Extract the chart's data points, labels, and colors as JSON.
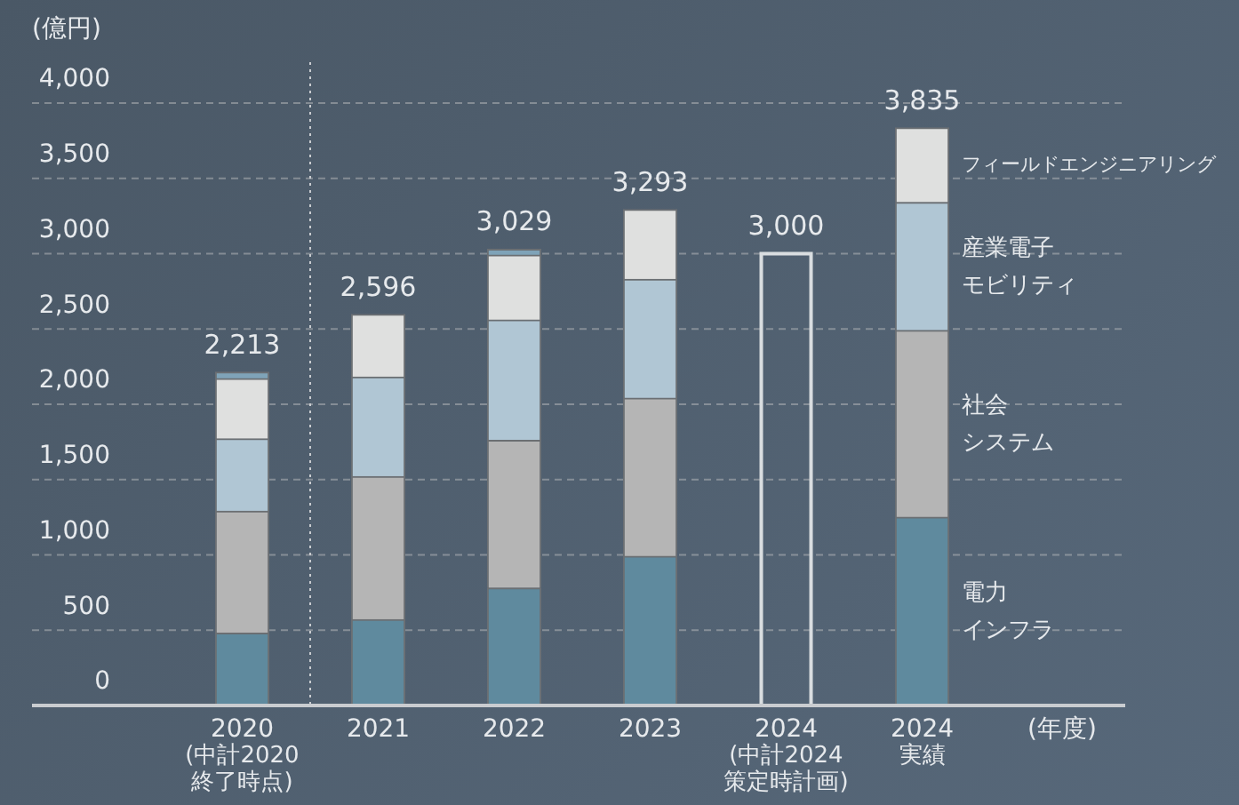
{
  "chart_data": {
    "type": "bar",
    "stacked": true,
    "ylabel": "(億円)",
    "xlabel": "(年度)",
    "categories": [
      "2020\n(中計2020\n終了時点)",
      "2021",
      "2022",
      "2023",
      "2024\n(中計2024\n策定時計画)",
      "2024\n実績"
    ],
    "series": [
      {
        "name": "電力インフラ",
        "color": "#5f8a9e",
        "values": [
          480,
          570,
          780,
          990,
          null,
          1250
        ]
      },
      {
        "name": "社会システム",
        "color": "#b5b5b5",
        "values": [
          810,
          950,
          980,
          1050,
          null,
          1240
        ]
      },
      {
        "name": "産業電子モビリティ",
        "color": "#b0c6d4",
        "values": [
          480,
          660,
          800,
          790,
          null,
          850
        ]
      },
      {
        "name": "フィールドエンジニアリング",
        "color": "#dfe0df",
        "values": [
          400,
          416,
          430,
          463,
          null,
          495
        ]
      },
      {
        "color": "#7fa3b8",
        "values": [
          43,
          null,
          39,
          null,
          null,
          null
        ]
      },
      {
        "color": "#d9dde0",
        "line_style": "solid",
        "values": [
          null,
          null,
          null,
          null,
          3000,
          null
        ]
      }
    ],
    "totals": [
      "2,213",
      "2,596",
      "3,029",
      "3,293",
      "3,000",
      "3,835"
    ],
    "ylim": [
      0,
      4000
    ],
    "yticks": [
      0,
      500,
      {
        "value": 1000,
        "label": "1,000"
      },
      {
        "value": 1500,
        "label": "1,500"
      },
      {
        "value": 2000,
        "label": "2,000"
      },
      {
        "value": 2500,
        "label": "2,500"
      },
      {
        "value": 3000,
        "label": "3,000"
      },
      {
        "value": 3500,
        "label": "3,500"
      },
      {
        "value": 4000,
        "label": "4,000"
      }
    ],
    "ref_lines": [
      {
        "axis": "x",
        "value": "2020\n(中計2020\n終了時点)",
        "color": "#c9ccd0",
        "line_style": "dotted"
      }
    ],
    "grid": "y",
    "legend": false
  }
}
